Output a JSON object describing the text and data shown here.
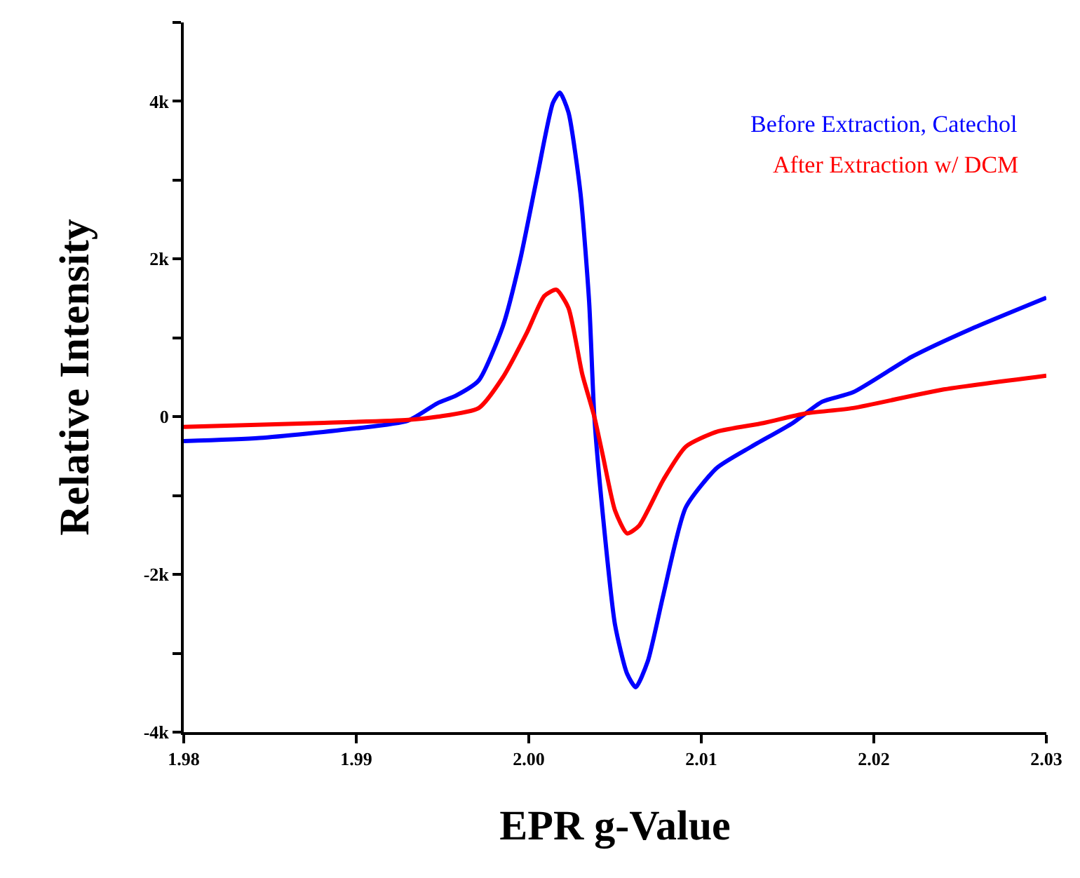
{
  "chart_data": {
    "type": "line",
    "xlabel": "EPR g-Value",
    "ylabel": "Relative Intensity",
    "xlim": [
      1.98,
      2.03
    ],
    "xticks": [
      {
        "value": 1.98,
        "label": "1.98"
      },
      {
        "value": 1.99,
        "label": "1.99"
      },
      {
        "value": 2.0,
        "label": "2.00"
      },
      {
        "value": 2.01,
        "label": "2.01"
      },
      {
        "value": 2.02,
        "label": "2.02"
      },
      {
        "value": 2.03,
        "label": "2.03"
      }
    ],
    "ylim": [
      -4000,
      5000
    ],
    "yticks": [
      {
        "value": -4000,
        "label": "-4k"
      },
      {
        "value": -3000,
        "label": null
      },
      {
        "value": -2000,
        "label": "-2k"
      },
      {
        "value": -1000,
        "label": null
      },
      {
        "value": 0,
        "label": "0"
      },
      {
        "value": 1000,
        "label": null
      },
      {
        "value": 2000,
        "label": "2k"
      },
      {
        "value": 3000,
        "label": null
      },
      {
        "value": 4000,
        "label": "4k"
      },
      {
        "value": 5000,
        "label": null
      }
    ],
    "marker": "none",
    "line_style": "solid",
    "series": [
      {
        "name": "Before Extraction, Catechol",
        "color": "#0000ff",
        "x": [
          1.98,
          1.9844,
          1.9899,
          1.993,
          1.9947,
          1.9958,
          1.9971,
          1.9985,
          1.9995,
          2.0005,
          2.0014,
          2.0018,
          2.0023,
          2.003,
          2.0035,
          2.0038,
          2.0043,
          2.005,
          2.0057,
          2.0062,
          2.0069,
          2.0078,
          2.0091,
          2.0109,
          2.0129,
          2.0153,
          2.017,
          2.0188,
          2.0222,
          2.0256,
          2.03
        ],
        "values": [
          -310,
          -270,
          -150,
          -50,
          170,
          270,
          460,
          1150,
          1990,
          3060,
          3980,
          4110,
          3860,
          2830,
          1450,
          0,
          -1260,
          -2640,
          -3260,
          -3430,
          -3100,
          -2260,
          -1150,
          -650,
          -380,
          -80,
          190,
          310,
          760,
          1110,
          1510
        ]
      },
      {
        "name": "After Extraction w/ DCM",
        "color": "#ff0000",
        "x": [
          1.98,
          1.9878,
          1.993,
          1.9947,
          1.9971,
          1.9985,
          1.9999,
          2.0009,
          2.0016,
          2.0023,
          2.0031,
          2.0038,
          2.0043,
          2.005,
          2.0057,
          2.0064,
          2.0078,
          2.0091,
          2.0109,
          2.0136,
          2.016,
          2.0188,
          2.0239,
          2.03
        ],
        "values": [
          -130,
          -80,
          -40,
          0,
          110,
          500,
          1070,
          1530,
          1610,
          1380,
          540,
          0,
          -500,
          -1190,
          -1480,
          -1380,
          -800,
          -380,
          -190,
          -80,
          40,
          110,
          340,
          520
        ]
      }
    ],
    "legend": "top right"
  }
}
